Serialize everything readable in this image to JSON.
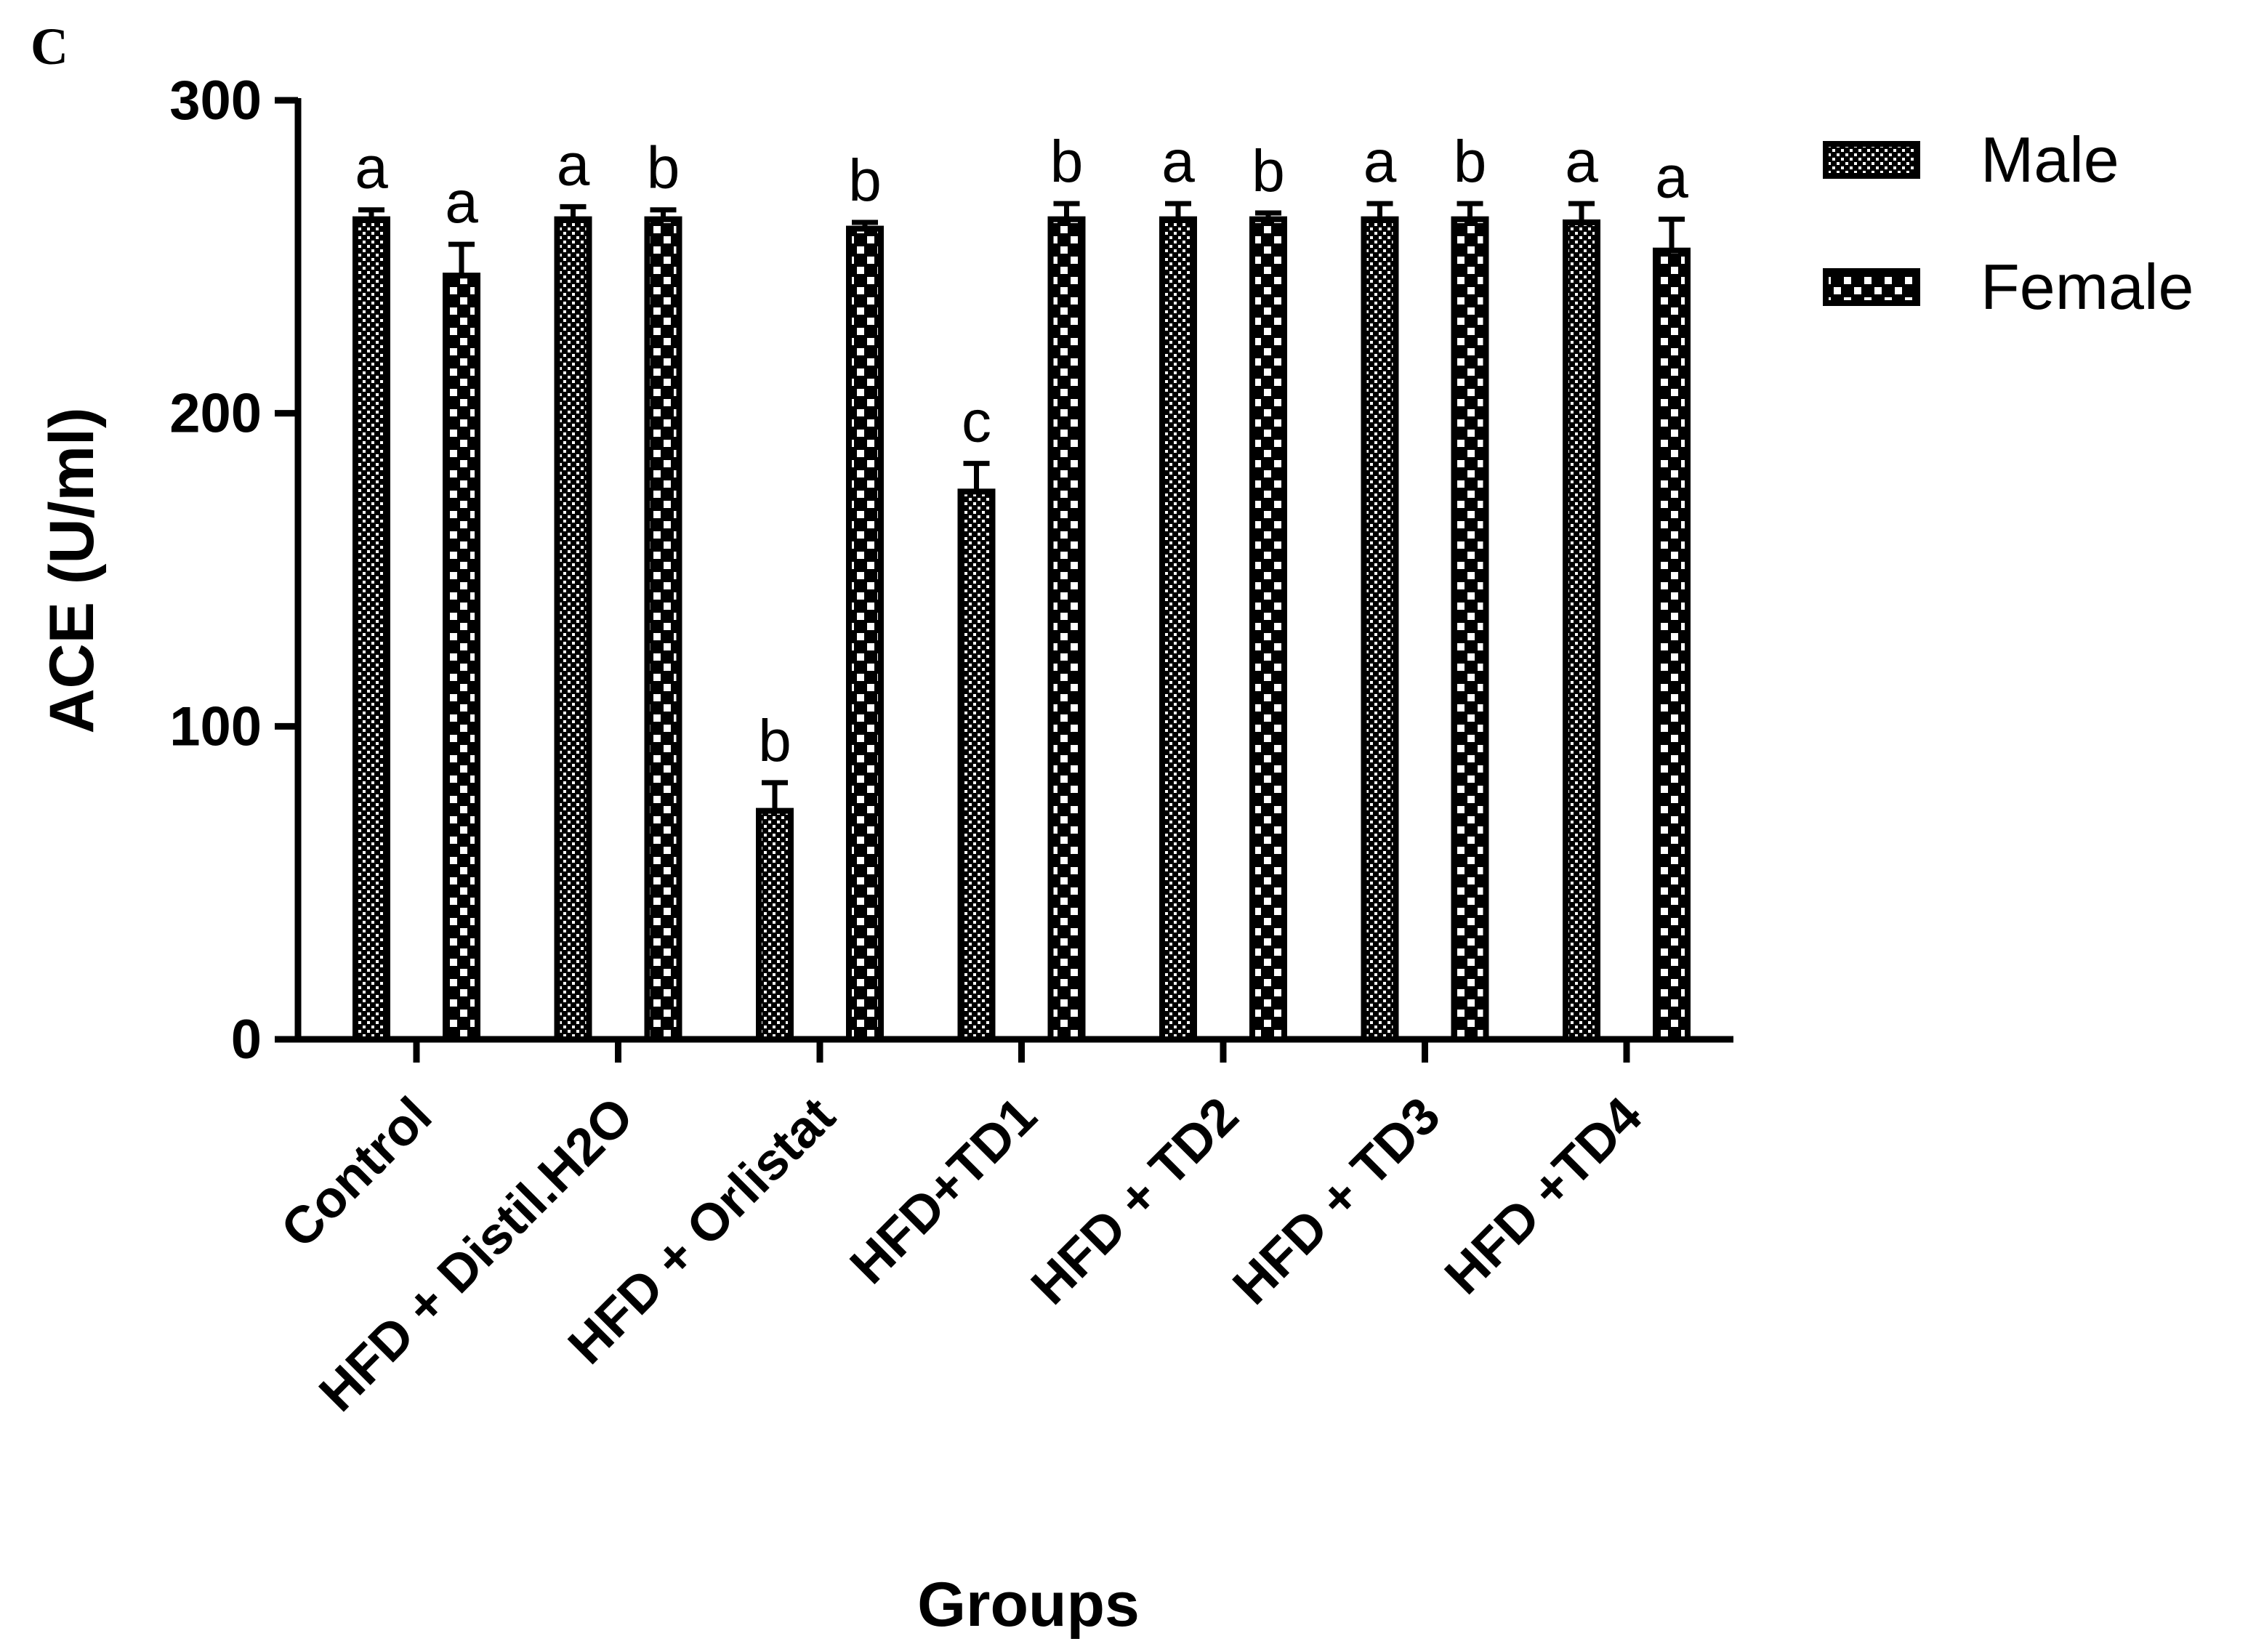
{
  "panel_label": "C",
  "chart_data": {
    "type": "bar",
    "title": "",
    "xlabel": "Groups",
    "ylabel": "ACE (U/ml)",
    "ylim": [
      0,
      300
    ],
    "yticks": [
      "0",
      "100",
      "200",
      "300"
    ],
    "categories": [
      "Control",
      "HFD + Distil.H2O",
      "HFD + Orlistat",
      "HFD+TD1",
      "HFD + TD2",
      "HFD + TD3",
      "HFD +TD4"
    ],
    "legend_position": "top-right",
    "grid": false,
    "series": [
      {
        "name": "Male",
        "pattern": "fine-checker",
        "values": [
          262,
          262,
          73,
          175,
          262,
          262,
          261
        ],
        "errors": [
          3,
          4,
          9,
          9,
          5,
          5,
          6
        ],
        "letters": [
          "a",
          "a",
          "b",
          "c",
          "a",
          "a",
          "a"
        ]
      },
      {
        "name": "Female",
        "pattern": "coarse-checker",
        "values": [
          244,
          262,
          259,
          262,
          262,
          262,
          252
        ],
        "errors": [
          10,
          3,
          2,
          5,
          2,
          5,
          10
        ],
        "letters": [
          "a",
          "b",
          "b",
          "b",
          "b",
          "b",
          "a"
        ]
      }
    ],
    "colors": {
      "bar_fill": "#000000",
      "bar_pattern": "#ffffff",
      "axis": "#000000"
    }
  }
}
